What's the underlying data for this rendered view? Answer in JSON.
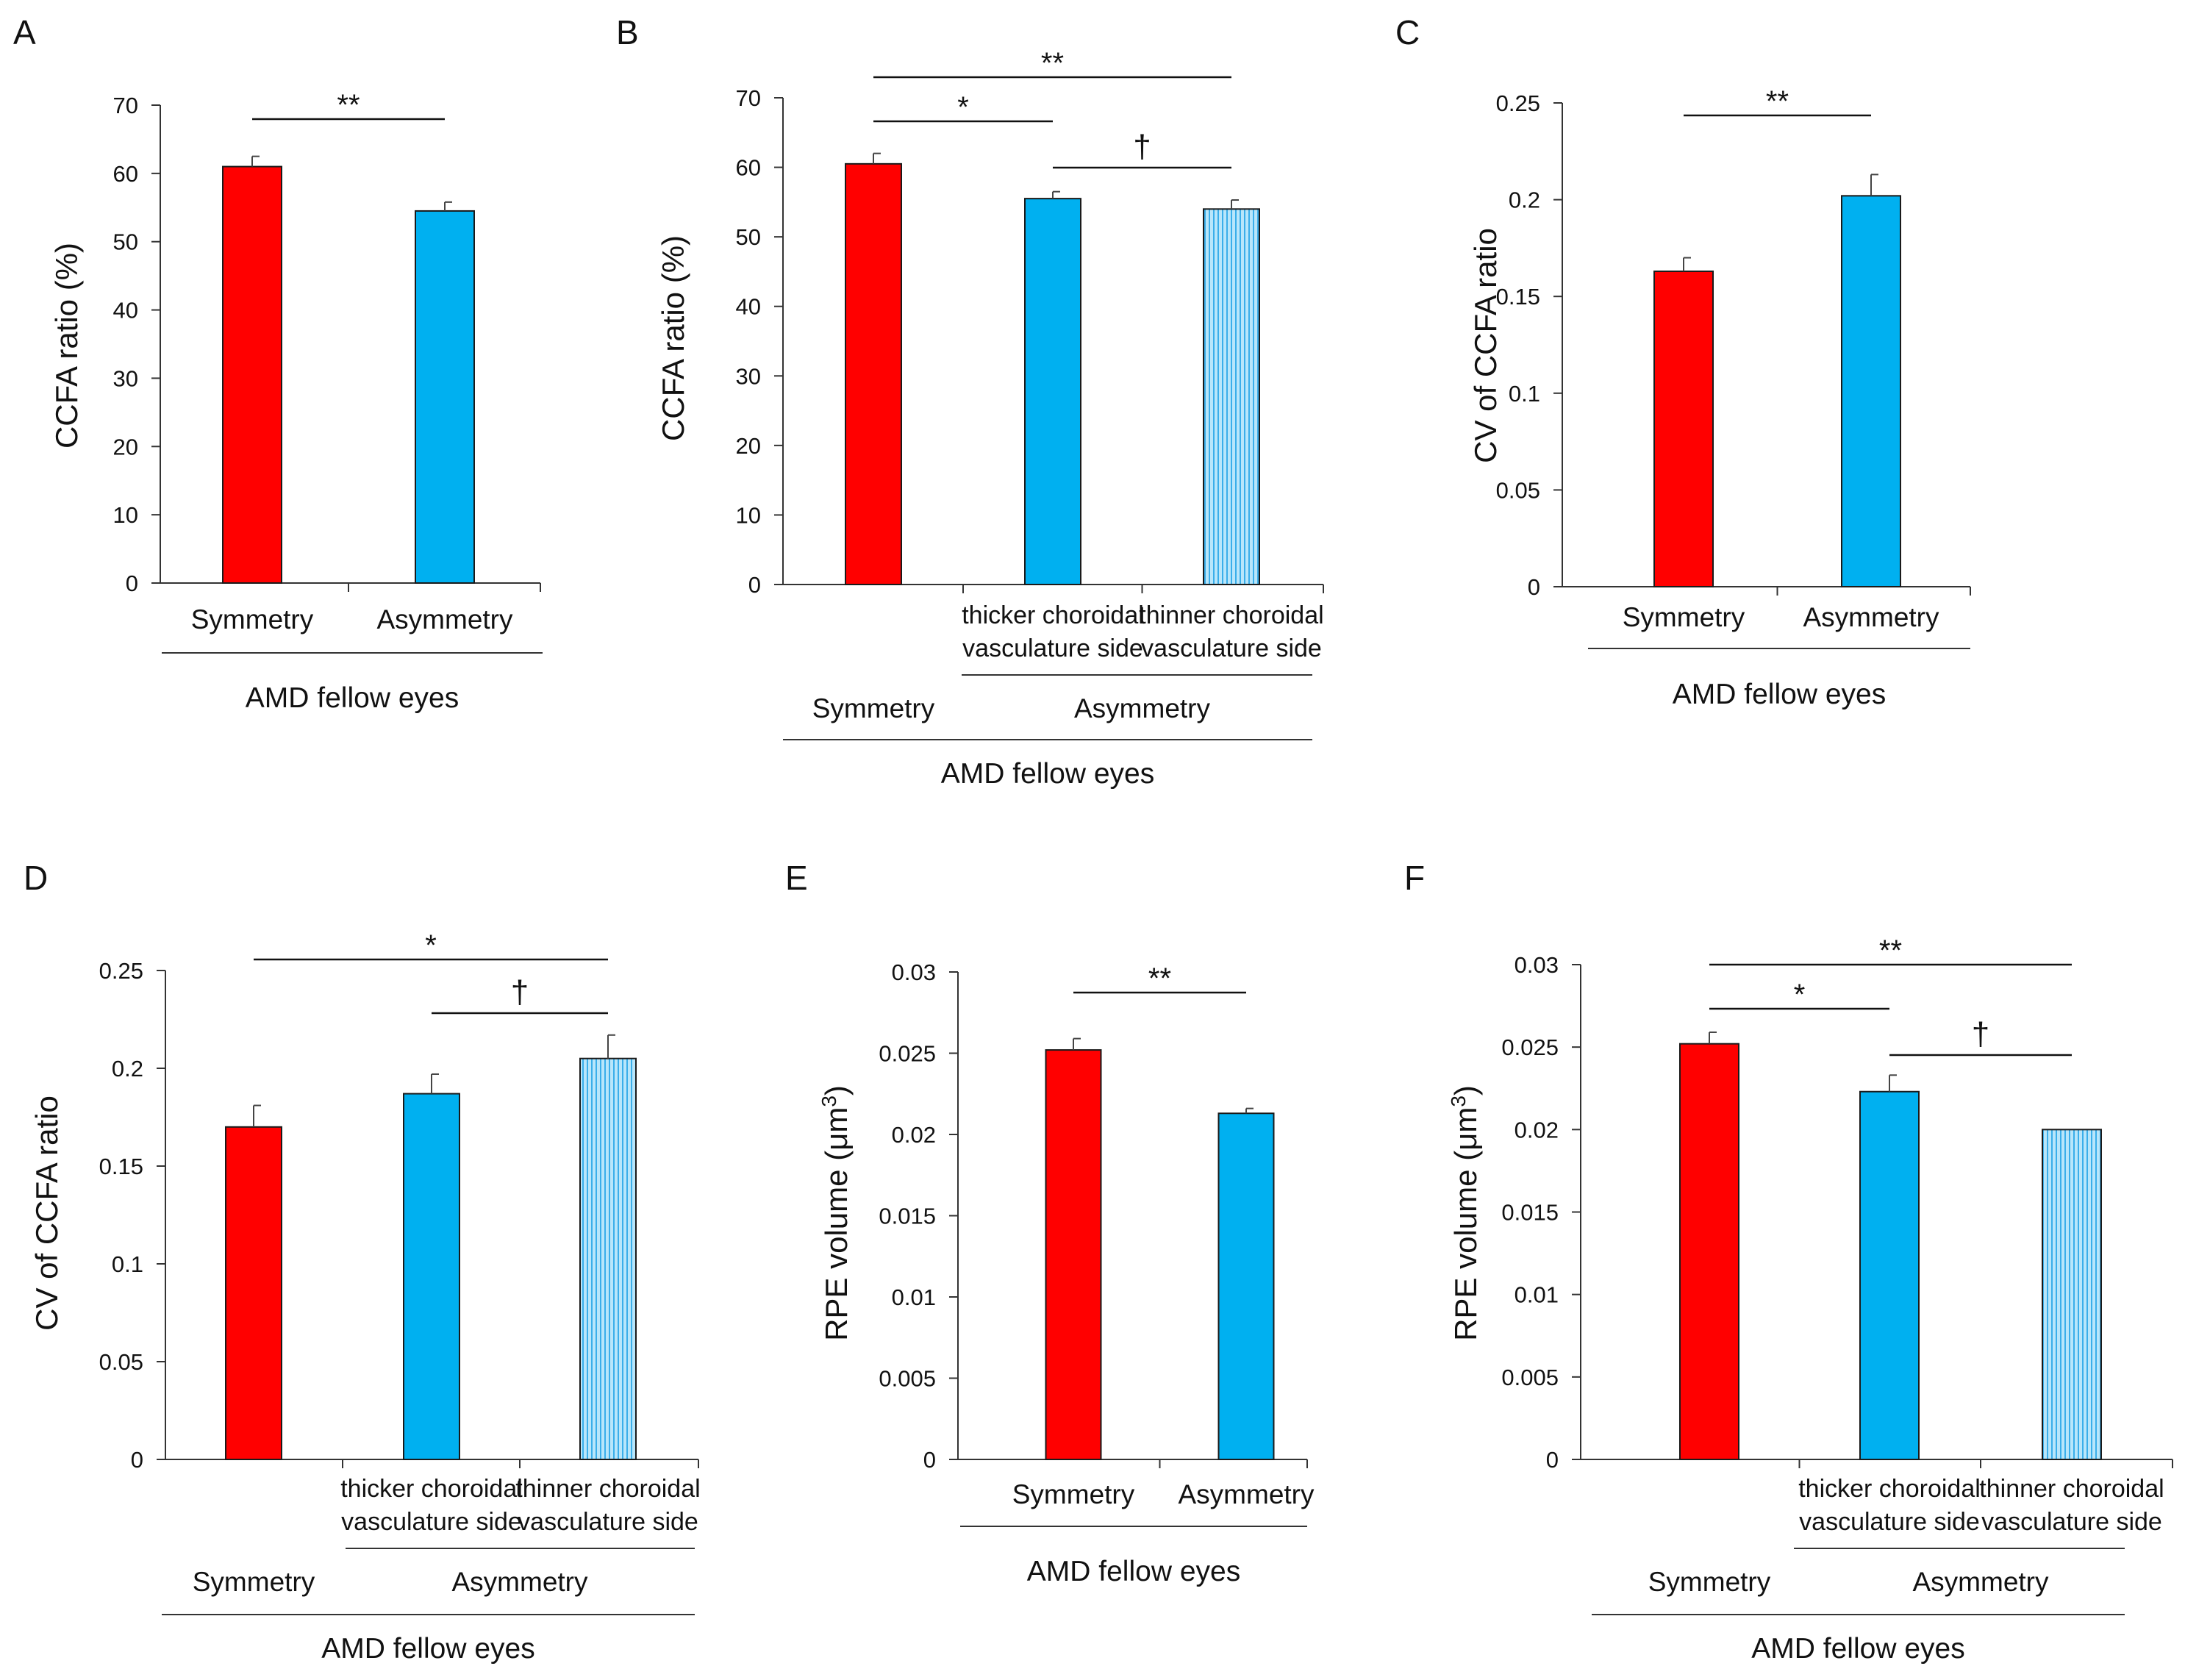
{
  "colors": {
    "symmetry": "#ff0000",
    "asymmetry": "#00b0f0",
    "thinner_side": "#b8e6fb",
    "thinner_stripe": "#3aaeea",
    "axis": "#333333",
    "bracket": "#111111"
  },
  "chart_data": [
    {
      "panel": "A",
      "type": "bar",
      "ylabel": "CCFA ratio (%)",
      "ylim": [
        0,
        70
      ],
      "yticks": [
        0,
        10,
        20,
        30,
        40,
        50,
        60,
        70
      ],
      "ytick_labels": [
        "0",
        "10",
        "20",
        "30",
        "40",
        "50",
        "60",
        "70"
      ],
      "bars": [
        {
          "label": "Symmetry",
          "value": 61,
          "error": 1.5,
          "color": "symmetry"
        },
        {
          "label": "Asymmetry",
          "value": 54.5,
          "error": 1.3,
          "color": "asymmetry"
        }
      ],
      "brackets": [
        {
          "from": 0,
          "to": 1,
          "label": "**"
        }
      ],
      "group_label": "AMD fellow eyes"
    },
    {
      "panel": "B",
      "type": "bar",
      "ylabel": "CCFA ratio (%)",
      "ylim": [
        0,
        70
      ],
      "yticks": [
        0,
        10,
        20,
        30,
        40,
        50,
        60,
        70
      ],
      "ytick_labels": [
        "0",
        "10",
        "20",
        "30",
        "40",
        "50",
        "60",
        "70"
      ],
      "bars": [
        {
          "label": "",
          "value": 60.5,
          "error": 1.5,
          "color": "symmetry"
        },
        {
          "label": "thicker choroidal vasculature side",
          "label_lines": [
            "thicker choroidal",
            "vasculature side"
          ],
          "value": 55.5,
          "error": 1.0,
          "color": "asymmetry"
        },
        {
          "label": "thinner choroidal vasculature side",
          "label_lines": [
            "thinner choroidal",
            "vasculature side"
          ],
          "value": 54,
          "error": 1.3,
          "color": "thinner"
        }
      ],
      "brackets": [
        {
          "from": 0,
          "to": 2,
          "label": "**"
        },
        {
          "from": 0,
          "to": 1,
          "label": "*"
        },
        {
          "from": 1,
          "to": 2,
          "label": "†"
        }
      ],
      "sub_groups": [
        {
          "label": "Symmetry",
          "bars": [
            0
          ]
        },
        {
          "label": "Asymmetry",
          "bars": [
            1,
            2
          ]
        }
      ],
      "group_label": "AMD fellow eyes"
    },
    {
      "panel": "C",
      "type": "bar",
      "ylabel": "CV of CCFA ratio",
      "ylim": [
        0,
        0.25
      ],
      "yticks": [
        0,
        0.05,
        0.1,
        0.15,
        0.2,
        0.25
      ],
      "ytick_labels": [
        "0",
        "0.05",
        "0.1",
        "0.15",
        "0.2",
        "0.25"
      ],
      "bars": [
        {
          "label": "Symmetry",
          "value": 0.163,
          "error": 0.007,
          "color": "symmetry"
        },
        {
          "label": "Asymmetry",
          "value": 0.202,
          "error": 0.011,
          "color": "asymmetry"
        }
      ],
      "brackets": [
        {
          "from": 0,
          "to": 1,
          "label": "**"
        }
      ],
      "group_label": "AMD fellow eyes"
    },
    {
      "panel": "D",
      "type": "bar",
      "ylabel": "CV of CCFA ratio",
      "ylim": [
        0,
        0.25
      ],
      "yticks": [
        0,
        0.05,
        0.1,
        0.15,
        0.2,
        0.25
      ],
      "ytick_labels": [
        "0",
        "0.05",
        "0.1",
        "0.15",
        "0.2",
        "0.25"
      ],
      "bars": [
        {
          "label": "",
          "value": 0.17,
          "error": 0.011,
          "color": "symmetry"
        },
        {
          "label": "thicker choroidal vasculature side",
          "label_lines": [
            "thicker choroidal",
            "vasculature side"
          ],
          "value": 0.187,
          "error": 0.01,
          "color": "asymmetry"
        },
        {
          "label": "thinner choroidal vasculature side",
          "label_lines": [
            "thinner choroidal",
            "vasculature side"
          ],
          "value": 0.205,
          "error": 0.012,
          "color": "thinner"
        }
      ],
      "brackets": [
        {
          "from": 0,
          "to": 2,
          "label": "*"
        },
        {
          "from": 1,
          "to": 2,
          "label": "†"
        }
      ],
      "sub_groups": [
        {
          "label": "Symmetry",
          "bars": [
            0
          ]
        },
        {
          "label": "Asymmetry",
          "bars": [
            1,
            2
          ]
        }
      ],
      "group_label": "AMD fellow eyes"
    },
    {
      "panel": "E",
      "type": "bar",
      "ylabel": "RPE volume (μm³)",
      "ylabel_parts": [
        "RPE volume (μm",
        "3",
        ")"
      ],
      "ylim": [
        0,
        0.03
      ],
      "yticks": [
        0,
        0.005,
        0.01,
        0.015,
        0.02,
        0.025,
        0.03
      ],
      "ytick_labels": [
        "0",
        "0.005",
        "0.01",
        "0.015",
        "0.02",
        "0.025",
        "0.03"
      ],
      "bars": [
        {
          "label": "Symmetry",
          "value": 0.0252,
          "error": 0.0007,
          "color": "symmetry"
        },
        {
          "label": "Asymmetry",
          "value": 0.0213,
          "error": 0.0003,
          "color": "asymmetry"
        }
      ],
      "brackets": [
        {
          "from": 0,
          "to": 1,
          "label": "**"
        }
      ],
      "group_label": "AMD fellow eyes"
    },
    {
      "panel": "F",
      "type": "bar",
      "ylabel": "RPE volume (μm³)",
      "ylabel_parts": [
        "RPE volume (μm",
        "3",
        ")"
      ],
      "ylim": [
        0,
        0.03
      ],
      "yticks": [
        0,
        0.005,
        0.01,
        0.015,
        0.02,
        0.025,
        0.03
      ],
      "ytick_labels": [
        "0",
        "0.005",
        "0.01",
        "0.015",
        "0.02",
        "0.025",
        "0.03"
      ],
      "bars": [
        {
          "label": "",
          "value": 0.0252,
          "error": 0.0007,
          "color": "symmetry"
        },
        {
          "label": "thicker choroidal vasculature side",
          "label_lines": [
            "thicker choroidal",
            "vasculature side"
          ],
          "value": 0.0223,
          "error": 0.001,
          "color": "asymmetry"
        },
        {
          "label": "thinner choroidal vasculature side",
          "label_lines": [
            "thinner choroidal",
            "vasculature side"
          ],
          "value": 0.02,
          "error": 0,
          "color": "thinner"
        }
      ],
      "brackets": [
        {
          "from": 0,
          "to": 2,
          "label": "**"
        },
        {
          "from": 0,
          "to": 1,
          "label": "*"
        },
        {
          "from": 1,
          "to": 2,
          "label": "†"
        }
      ],
      "sub_groups": [
        {
          "label": "Symmetry",
          "bars": [
            0
          ]
        },
        {
          "label": "Asymmetry",
          "bars": [
            1,
            2
          ]
        }
      ],
      "group_label": "AMD fellow eyes"
    }
  ]
}
